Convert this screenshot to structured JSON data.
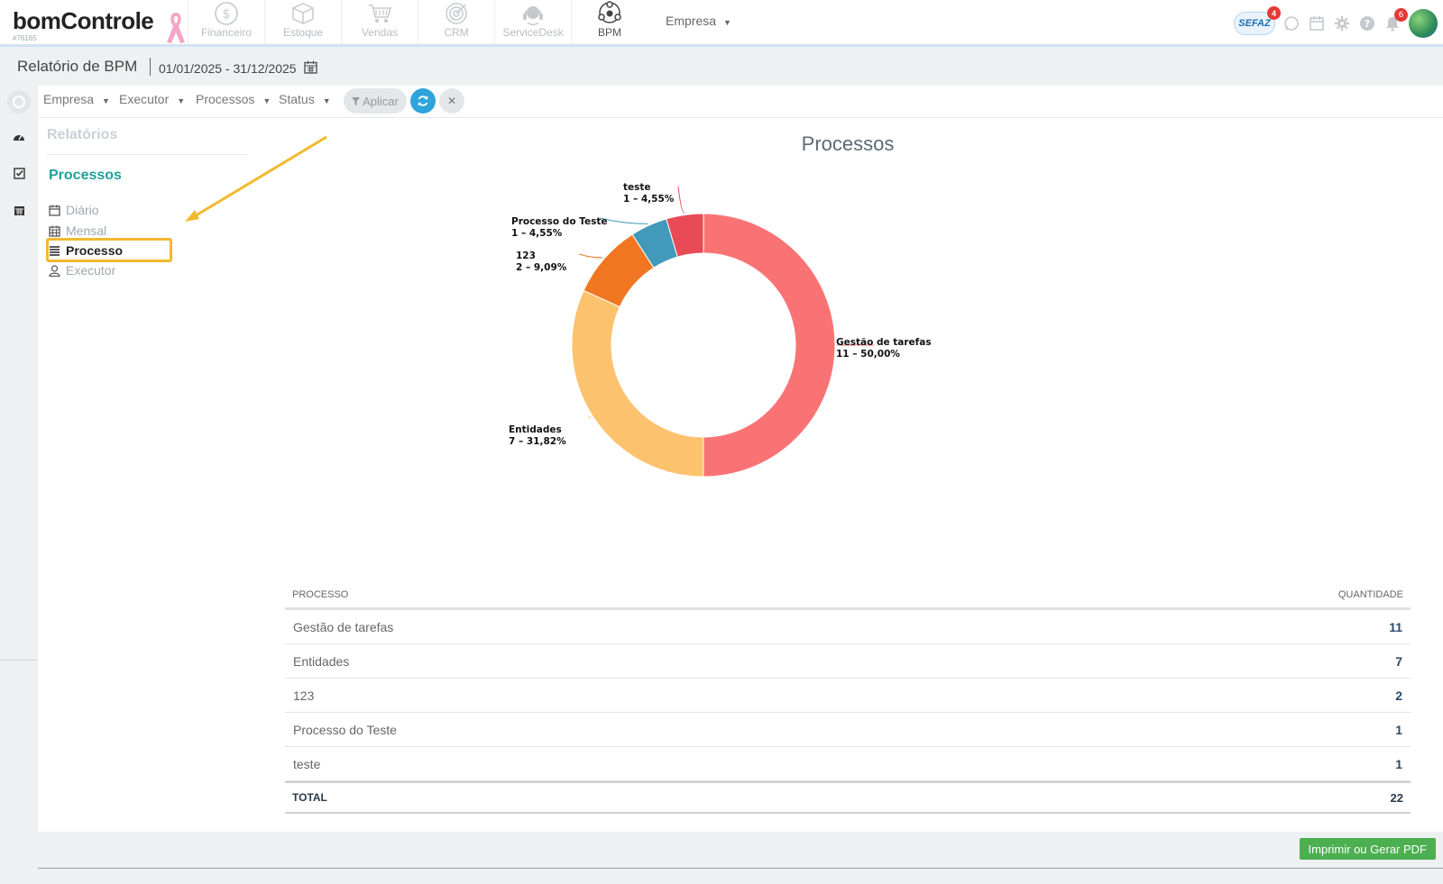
{
  "app": {
    "logo": "bomControle",
    "account_id": "#76165"
  },
  "modules": [
    {
      "label": "Financeiro",
      "icon": "dollar-circle-icon",
      "active": false
    },
    {
      "label": "Estoque",
      "icon": "box-icon",
      "active": false
    },
    {
      "label": "Vendas",
      "icon": "cart-icon",
      "active": false
    },
    {
      "label": "CRM",
      "icon": "target-icon",
      "active": false
    },
    {
      "label": "ServiceDesk",
      "icon": "headset-icon",
      "active": false
    },
    {
      "label": "BPM",
      "icon": "bpm-network-icon",
      "active": true
    }
  ],
  "topbar": {
    "empresa_label": "Empresa",
    "sefaz_label": "SEFAZ",
    "sefaz_badge": "4",
    "notifications_badge": "6"
  },
  "page": {
    "title": "Relatório de BPM",
    "date_range": "01/01/2025 - 31/12/2025"
  },
  "filters": {
    "items": [
      "Empresa",
      "Executor",
      "Processos",
      "Status"
    ],
    "apply_label": "Aplicar"
  },
  "sidenav": {
    "header": "Relatórios",
    "section": "Processos",
    "items": [
      {
        "label": "Diário",
        "icon": "calendar-icon",
        "active": false
      },
      {
        "label": "Mensal",
        "icon": "calendar-grid-icon",
        "active": false
      },
      {
        "label": "Processo",
        "icon": "list-icon",
        "active": true
      },
      {
        "label": "Executor",
        "icon": "user-icon",
        "active": false
      }
    ]
  },
  "chart_data": {
    "type": "pie",
    "title": "Processos",
    "donut": true,
    "slices": [
      {
        "label": "Gestão de tarefas",
        "value": 11,
        "percent": "50,00%",
        "color": "#f97375",
        "data_label": "11 – 50,00%"
      },
      {
        "label": "Entidades",
        "value": 7,
        "percent": "31,82%",
        "color": "#fdc26e",
        "data_label": "7 – 31,82%"
      },
      {
        "label": "123",
        "value": 2,
        "percent": "9,09%",
        "color": "#f07622",
        "data_label": "2 – 9,09%"
      },
      {
        "label": "Processo do Teste",
        "value": 1,
        "percent": "4,55%",
        "color": "#4399ba",
        "data_label": "1 – 4,55%"
      },
      {
        "label": "teste",
        "value": 1,
        "percent": "4,55%",
        "color": "#e84b55",
        "data_label": "1 – 4,55%"
      }
    ]
  },
  "table": {
    "col_process": "PROCESSO",
    "col_quantity": "QUANTIDADE",
    "rows": [
      {
        "name": "Gestão de tarefas",
        "qty": "11"
      },
      {
        "name": "Entidades",
        "qty": "7"
      },
      {
        "name": "123",
        "qty": "2"
      },
      {
        "name": "Processo do Teste",
        "qty": "1"
      },
      {
        "name": "teste",
        "qty": "1"
      }
    ],
    "total_label": "TOTAL",
    "total_value": "22"
  },
  "footer": {
    "print_label": "Imprimir ou Gerar PDF"
  }
}
